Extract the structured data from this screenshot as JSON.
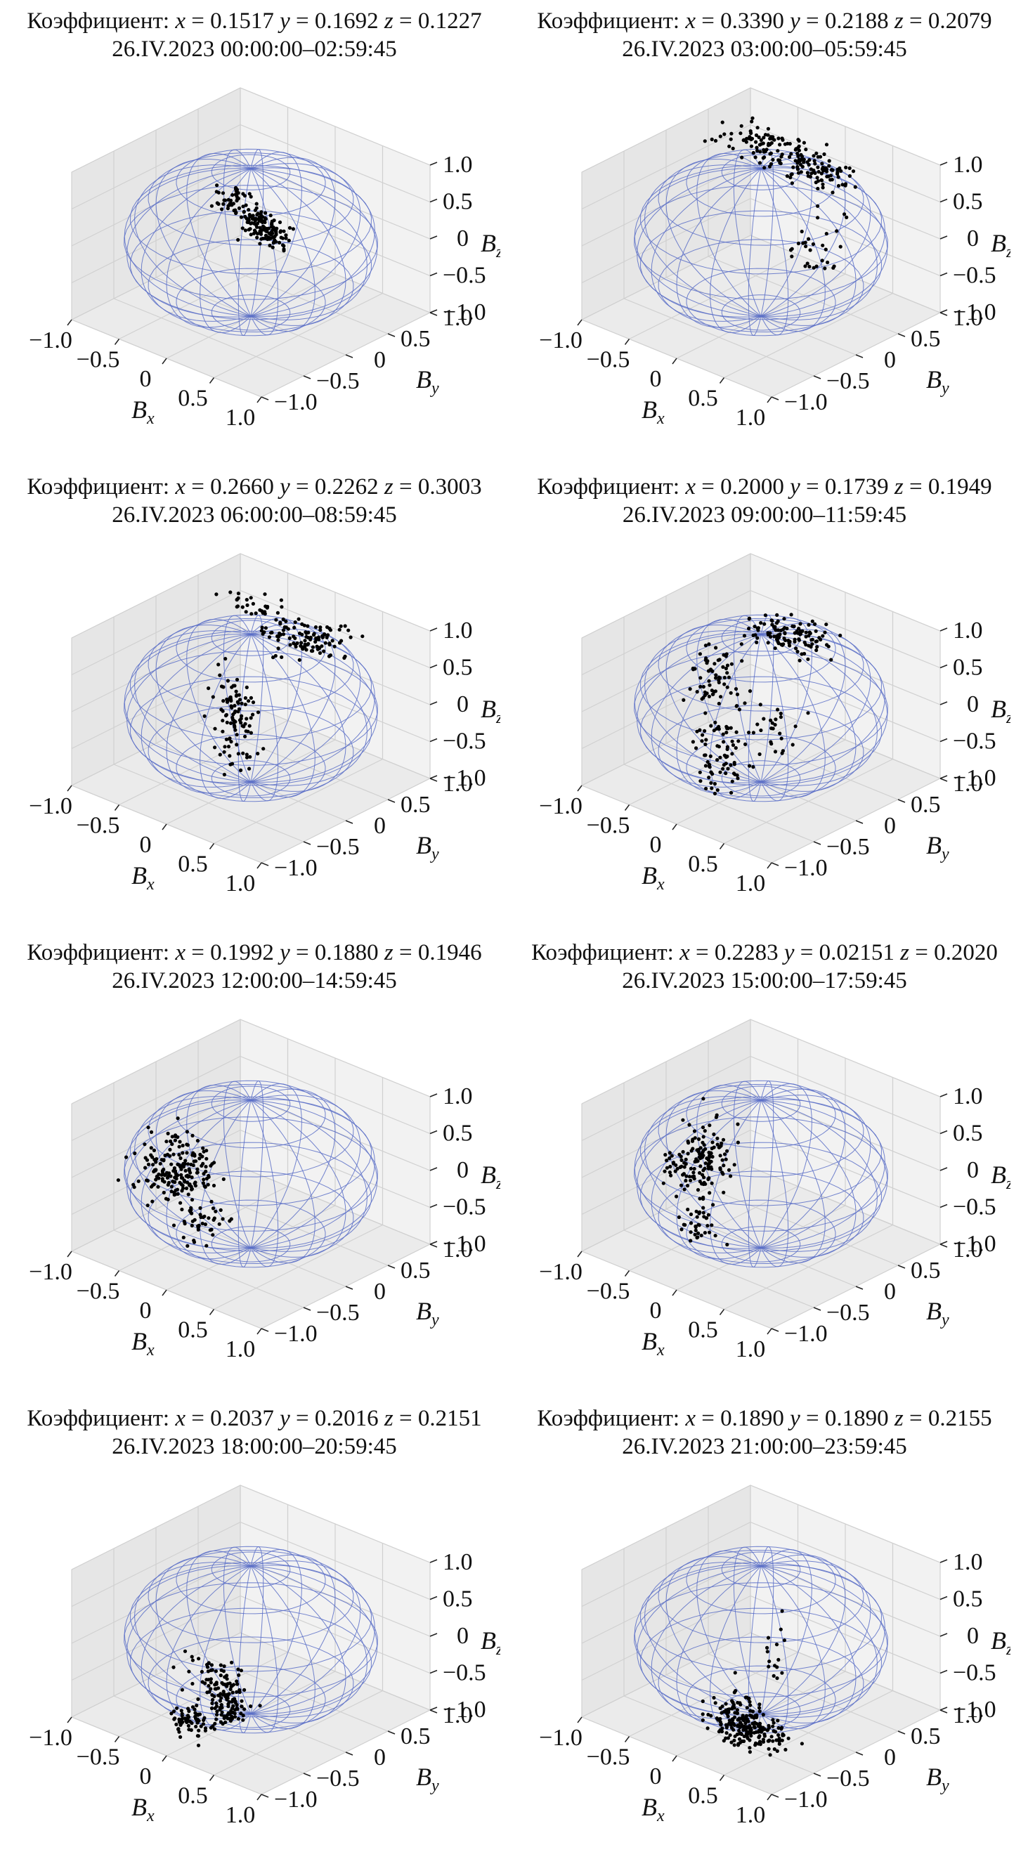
{
  "chart_data": [
    {
      "type": "scatter3d",
      "title_prefix": "Коэффициент:",
      "coef": {
        "x": "0.1517",
        "y": "0.1692",
        "z": "0.1227"
      },
      "subtitle": "26.IV.2023 00:00:00–02:59:45",
      "xlabel": "B",
      "xsub": "x",
      "ylabel": "B",
      "ysub": "y",
      "zlabel": "B",
      "zsub": "z",
      "xticks": [
        "−1.0",
        "−0.5",
        "0",
        "0.5",
        "1.0"
      ],
      "yticks": [
        "1.0",
        "0.5",
        "0",
        "−0.5",
        "−1.0"
      ],
      "zticks": [
        "1.0",
        "0.5",
        "0",
        "−0.5",
        "−1.0"
      ],
      "xlim": [
        -1,
        1
      ],
      "ylim": [
        -1,
        1
      ],
      "zlim": [
        -1,
        1
      ],
      "sphere_color": "#5b6fc7",
      "point_color": "#000000",
      "clusters": [
        {
          "x": 0.15,
          "y": -0.35,
          "z": 0.85,
          "sx": 0.08,
          "sy": 0.1,
          "sz": 0.06,
          "n": 50
        },
        {
          "x": 0.45,
          "y": -0.4,
          "z": 0.7,
          "sx": 0.08,
          "sy": 0.08,
          "sz": 0.08,
          "n": 60
        },
        {
          "x": 0.7,
          "y": -0.5,
          "z": 0.75,
          "sx": 0.08,
          "sy": 0.06,
          "sz": 0.08,
          "n": 40
        },
        {
          "x": 0.55,
          "y": -0.6,
          "z": 0.95,
          "sx": 0.05,
          "sy": 0.05,
          "sz": 0.04,
          "n": 20
        }
      ]
    },
    {
      "type": "scatter3d",
      "title_prefix": "Коэффициент:",
      "coef": {
        "x": "0.3390",
        "y": "0.2188",
        "z": "0.2079"
      },
      "subtitle": "26.IV.2023 03:00:00–05:59:45",
      "xlabel": "B",
      "xsub": "x",
      "ylabel": "B",
      "ysub": "y",
      "zlabel": "B",
      "zsub": "z",
      "xticks": [
        "−1.0",
        "−0.5",
        "0",
        "0.5",
        "1.0"
      ],
      "yticks": [
        "1.0",
        "0.5",
        "0",
        "−0.5",
        "−1.0"
      ],
      "zticks": [
        "1.0",
        "0.5",
        "0",
        "−0.5",
        "−1.0"
      ],
      "xlim": [
        -1,
        1
      ],
      "ylim": [
        -1,
        1
      ],
      "zlim": [
        -1,
        1
      ],
      "sphere_color": "#5b6fc7",
      "point_color": "#000000",
      "clusters": [
        {
          "x": -0.3,
          "y": 0.4,
          "z": 0.95,
          "sx": 0.2,
          "sy": 0.12,
          "sz": 0.03,
          "n": 90
        },
        {
          "x": 0.3,
          "y": 0.3,
          "z": 0.95,
          "sx": 0.2,
          "sy": 0.12,
          "sz": 0.03,
          "n": 90
        },
        {
          "x": 0.7,
          "y": -0.1,
          "z": 0.3,
          "sx": 0.12,
          "sy": 0.1,
          "sz": 0.25,
          "n": 30
        }
      ]
    },
    {
      "type": "scatter3d",
      "title_prefix": "Коэффициент:",
      "coef": {
        "x": "0.2660",
        "y": "0.2262",
        "z": "0.3003"
      },
      "subtitle": "26.IV.2023 06:00:00–08:59:45",
      "xlabel": "B",
      "xsub": "x",
      "ylabel": "B",
      "ysub": "y",
      "zlabel": "B",
      "zsub": "z",
      "xticks": [
        "−1.0",
        "−0.5",
        "0",
        "0.5",
        "1.0"
      ],
      "yticks": [
        "1.0",
        "0.5",
        "0",
        "−0.5",
        "−1.0"
      ],
      "zticks": [
        "1.0",
        "0.5",
        "0",
        "−0.5",
        "−1.0"
      ],
      "xlim": [
        -1,
        1
      ],
      "ylim": [
        -1,
        1
      ],
      "zlim": [
        -1,
        1
      ],
      "sphere_color": "#5b6fc7",
      "point_color": "#000000",
      "clusters": [
        {
          "x": -0.4,
          "y": 0.5,
          "z": 0.9,
          "sx": 0.15,
          "sy": 0.08,
          "sz": 0.04,
          "n": 30
        },
        {
          "x": 0.3,
          "y": 0.35,
          "z": 0.9,
          "sx": 0.2,
          "sy": 0.15,
          "sz": 0.05,
          "n": 110
        },
        {
          "x": 0.2,
          "y": -0.4,
          "z": 0.2,
          "sx": 0.1,
          "sy": 0.1,
          "sz": 0.3,
          "n": 100
        }
      ]
    },
    {
      "type": "scatter3d",
      "title_prefix": "Коэффициент:",
      "coef": {
        "x": "0.2000",
        "y": "0.1739",
        "z": "0.1949"
      },
      "subtitle": "26.IV.2023 09:00:00–11:59:45",
      "xlabel": "B",
      "xsub": "x",
      "ylabel": "B",
      "ysub": "y",
      "zlabel": "B",
      "zsub": "z",
      "xticks": [
        "−1.0",
        "−0.5",
        "0",
        "0.5",
        "1.0"
      ],
      "yticks": [
        "1.0",
        "0.5",
        "0",
        "−0.5",
        "−1.0"
      ],
      "zticks": [
        "1.0",
        "0.5",
        "0",
        "−0.5",
        "−1.0"
      ],
      "xlim": [
        -1,
        1
      ],
      "ylim": [
        -1,
        1
      ],
      "zlim": [
        -1,
        1
      ],
      "sphere_color": "#5b6fc7",
      "point_color": "#000000",
      "clusters": [
        {
          "x": 0.1,
          "y": 0.2,
          "z": 0.92,
          "sx": 0.2,
          "sy": 0.15,
          "sz": 0.04,
          "n": 110
        },
        {
          "x": -0.3,
          "y": -0.2,
          "z": 0.4,
          "sx": 0.12,
          "sy": 0.12,
          "sz": 0.2,
          "n": 60
        },
        {
          "x": 0.1,
          "y": -0.6,
          "z": -0.2,
          "sx": 0.1,
          "sy": 0.12,
          "sz": 0.3,
          "n": 80
        },
        {
          "x": 0.5,
          "y": -0.5,
          "z": 0.2,
          "sx": 0.15,
          "sy": 0.15,
          "sz": 0.2,
          "n": 30
        }
      ]
    },
    {
      "type": "scatter3d",
      "title_prefix": "Коэффициент:",
      "coef": {
        "x": "0.1992",
        "y": "0.1880",
        "z": "0.1946"
      },
      "subtitle": "26.IV.2023 12:00:00–14:59:45",
      "xlabel": "B",
      "xsub": "x",
      "ylabel": "B",
      "ysub": "y",
      "zlabel": "B",
      "zsub": "z",
      "xticks": [
        "−1.0",
        "−0.5",
        "0",
        "0.5",
        "1.0"
      ],
      "yticks": [
        "1.0",
        "0.5",
        "0",
        "−0.5",
        "−1.0"
      ],
      "zticks": [
        "1.0",
        "0.5",
        "0",
        "−0.5",
        "−1.0"
      ],
      "xlim": [
        -1,
        1
      ],
      "ylim": [
        -1,
        1
      ],
      "zlim": [
        -1,
        1
      ],
      "sphere_color": "#5b6fc7",
      "point_color": "#000000",
      "clusters": [
        {
          "x": -0.6,
          "y": -0.3,
          "z": -0.15,
          "sx": 0.15,
          "sy": 0.15,
          "sz": 0.15,
          "n": 100
        },
        {
          "x": -0.3,
          "y": -0.4,
          "z": 0.2,
          "sx": 0.15,
          "sy": 0.12,
          "sz": 0.2,
          "n": 90
        },
        {
          "x": -0.1,
          "y": -0.5,
          "z": -0.4,
          "sx": 0.1,
          "sy": 0.1,
          "sz": 0.12,
          "n": 40
        }
      ]
    },
    {
      "type": "scatter3d",
      "title_prefix": "Коэффициент:",
      "coef": {
        "x": "0.2283",
        "y": "0.02151",
        "z": "0.2020"
      },
      "subtitle": "26.IV.2023 15:00:00–17:59:45",
      "xlabel": "B",
      "xsub": "x",
      "ylabel": "B",
      "ysub": "y",
      "zlabel": "B",
      "zsub": "z",
      "xticks": [
        "−1.0",
        "−0.5",
        "0",
        "0.5",
        "1.0"
      ],
      "yticks": [
        "1.0",
        "0.5",
        "0",
        "−0.5",
        "−1.0"
      ],
      "zticks": [
        "1.0",
        "0.5",
        "0",
        "−0.5",
        "−1.0"
      ],
      "xlim": [
        -1,
        1
      ],
      "ylim": [
        -1,
        1
      ],
      "zlim": [
        -1,
        1
      ],
      "sphere_color": "#5b6fc7",
      "point_color": "#000000",
      "clusters": [
        {
          "x": -0.5,
          "y": -0.3,
          "z": 0.0,
          "sx": 0.12,
          "sy": 0.1,
          "sz": 0.15,
          "n": 60
        },
        {
          "x": -0.2,
          "y": -0.4,
          "z": 0.4,
          "sx": 0.12,
          "sy": 0.1,
          "sz": 0.2,
          "n": 80
        },
        {
          "x": 0.0,
          "y": -0.7,
          "z": -0.3,
          "sx": 0.08,
          "sy": 0.08,
          "sz": 0.15,
          "n": 40
        }
      ]
    },
    {
      "type": "scatter3d",
      "title_prefix": "Коэффициент:",
      "coef": {
        "x": "0.2037",
        "y": "0.2016",
        "z": "0.2151"
      },
      "subtitle": "26.IV.2023 18:00:00–20:59:45",
      "xlabel": "B",
      "xsub": "x",
      "ylabel": "B",
      "ysub": "y",
      "zlabel": "B",
      "zsub": "z",
      "xticks": [
        "−1.0",
        "−0.5",
        "0",
        "0.5",
        "1.0"
      ],
      "yticks": [
        "1.0",
        "0.5",
        "0",
        "−0.5",
        "−1.0"
      ],
      "zticks": [
        "1.0",
        "0.5",
        "0",
        "−0.5",
        "−1.0"
      ],
      "xlim": [
        -1,
        1
      ],
      "ylim": [
        -1,
        1
      ],
      "zlim": [
        -1,
        1
      ],
      "sphere_color": "#5b6fc7",
      "point_color": "#000000",
      "clusters": [
        {
          "x": 0.2,
          "y": -0.5,
          "z": -0.4,
          "sx": 0.1,
          "sy": 0.1,
          "sz": 0.2,
          "n": 120
        },
        {
          "x": 0.0,
          "y": -0.7,
          "z": -0.7,
          "sx": 0.1,
          "sy": 0.08,
          "sz": 0.1,
          "n": 70
        },
        {
          "x": -0.2,
          "y": -0.4,
          "z": -0.2,
          "sx": 0.08,
          "sy": 0.08,
          "sz": 0.1,
          "n": 15
        }
      ]
    },
    {
      "type": "scatter3d",
      "title_prefix": "Коэффициент:",
      "coef": {
        "x": "0.1890",
        "y": "0.1890",
        "z": "0.2155"
      },
      "subtitle": "26.IV.2023 21:00:00–23:59:45",
      "xlabel": "B",
      "xsub": "x",
      "ylabel": "B",
      "ysub": "y",
      "zlabel": "B",
      "zsub": "z",
      "xticks": [
        "−1.0",
        "−0.5",
        "0",
        "0.5",
        "1.0"
      ],
      "yticks": [
        "1.0",
        "0.5",
        "0",
        "−0.5",
        "−1.0"
      ],
      "zticks": [
        "1.0",
        "0.5",
        "0",
        "−0.5",
        "−1.0"
      ],
      "xlim": [
        -1,
        1
      ],
      "ylim": [
        -1,
        1
      ],
      "zlim": [
        -1,
        1
      ],
      "sphere_color": "#5b6fc7",
      "point_color": "#000000",
      "clusters": [
        {
          "x": 0.3,
          "y": -0.6,
          "z": -0.6,
          "sx": 0.12,
          "sy": 0.1,
          "sz": 0.15,
          "n": 160
        },
        {
          "x": 0.5,
          "y": -0.5,
          "z": -0.75,
          "sx": 0.08,
          "sy": 0.08,
          "sz": 0.08,
          "n": 60
        },
        {
          "x": 0.4,
          "y": -0.3,
          "z": 0.3,
          "sx": 0.05,
          "sy": 0.05,
          "sz": 0.2,
          "n": 15
        }
      ]
    }
  ]
}
